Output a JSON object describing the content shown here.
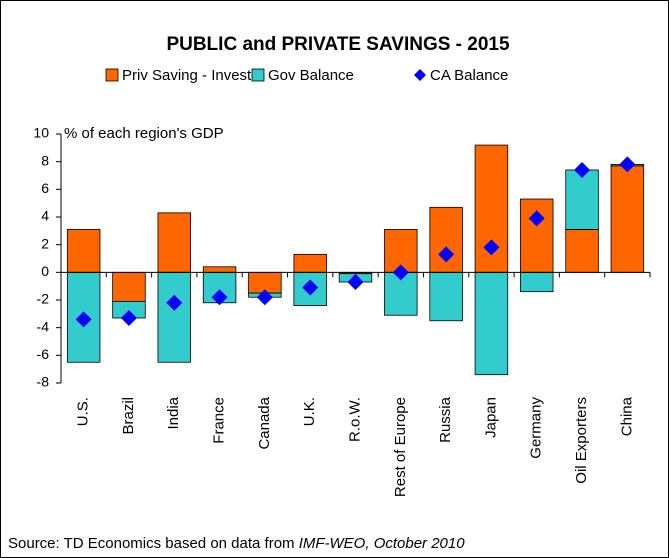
{
  "chart_data": {
    "type": "bar",
    "stacked": true,
    "title": "PUBLIC and PRIVATE SAVINGS - 2015",
    "annotation": "% of each region's GDP",
    "source": "Source: TD Economics based on data from",
    "source_emphasis": "IMF-WEO, October 2010",
    "categories": [
      "U.S.",
      "Brazil",
      "India",
      "France",
      "Canada",
      "U.K.",
      "R.o.W.",
      "Rest of Europe",
      "Russia",
      "Japan",
      "Germany",
      "Oil Exporters",
      "China"
    ],
    "series": [
      {
        "name": "Priv Saving - Invest",
        "type": "bar",
        "color": "#ff6600",
        "values": [
          3.1,
          -2.1,
          4.3,
          0.4,
          -1.5,
          1.3,
          -0.1,
          3.1,
          4.7,
          9.2,
          5.3,
          3.1,
          7.7
        ]
      },
      {
        "name": "Gov Balance",
        "type": "bar",
        "color": "#33cccc",
        "values": [
          -6.5,
          -1.2,
          -6.5,
          -2.2,
          -0.3,
          -2.4,
          -0.6,
          -3.1,
          -3.5,
          -7.4,
          -1.4,
          4.3,
          0.1
        ]
      },
      {
        "name": "CA Balance",
        "type": "scatter",
        "color": "#0000ff",
        "values": [
          -3.4,
          -3.3,
          -2.2,
          -1.8,
          -1.8,
          -1.1,
          -0.7,
          0.0,
          1.3,
          1.8,
          3.9,
          7.4,
          7.8
        ]
      }
    ],
    "ylim": [
      -8,
      10
    ],
    "yticks": [
      -8,
      -6,
      -4,
      -2,
      0,
      2,
      4,
      6,
      8,
      10
    ],
    "grid": false
  }
}
